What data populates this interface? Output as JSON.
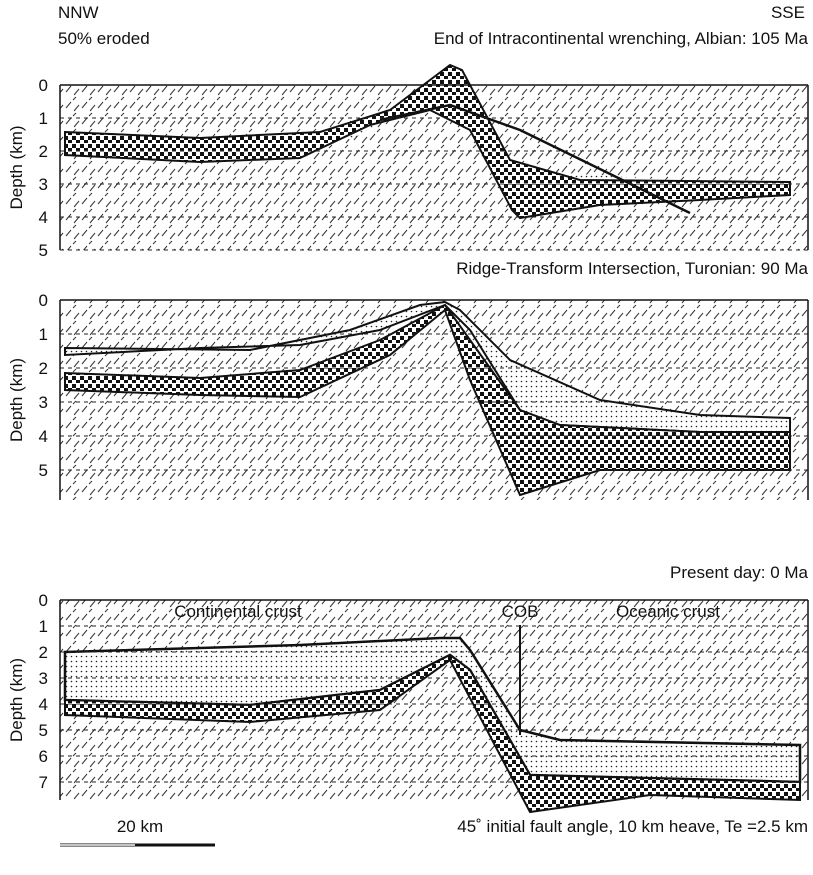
{
  "header": {
    "left": "NNW",
    "left_note": "50% eroded",
    "right": "SSE"
  },
  "panels": [
    {
      "title": "End of Intracontinental wrenching, Albian: 105 Ma",
      "axis_label": "Depth (km)",
      "ticks": [
        0,
        1,
        2,
        3,
        4,
        5
      ]
    },
    {
      "title": "Ridge-Transform Intersection, Turonian: 90 Ma",
      "axis_label": "Depth (km)",
      "ticks": [
        0,
        1,
        2,
        3,
        4,
        5
      ]
    },
    {
      "title": "Present day: 0 Ma",
      "axis_label": "Depth (km)",
      "ticks": [
        0,
        1,
        2,
        3,
        4,
        5,
        6,
        7
      ]
    }
  ],
  "annotations": {
    "continental": "Continental crust",
    "cob": "COB",
    "oceanic": "Oceanic crust"
  },
  "footer": {
    "scale": "20 km",
    "caption": "45˚ initial fault angle, 10 km heave, Te =2.5 km"
  }
}
